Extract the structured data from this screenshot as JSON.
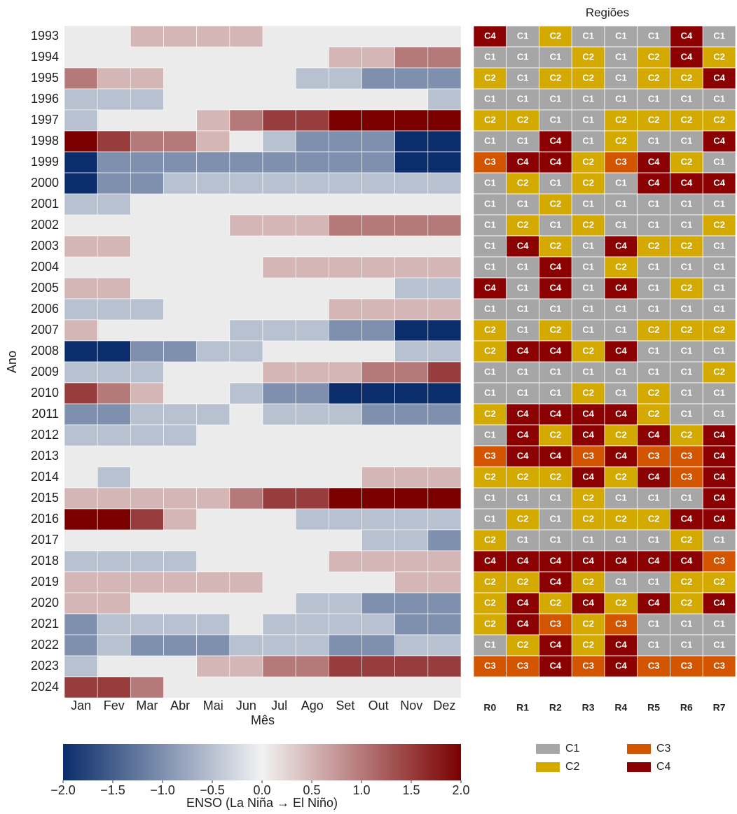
{
  "chart_data": [
    {
      "type": "heatmap",
      "x_label": "Mês",
      "y_label": "Ano",
      "categories": [
        "Jan",
        "Fev",
        "Mar",
        "Abr",
        "Mai",
        "Jun",
        "Jul",
        "Ago",
        "Set",
        "Out",
        "Nov",
        "Dez"
      ],
      "rows": [
        "1993",
        "1994",
        "1995",
        "1996",
        "1997",
        "1998",
        "1999",
        "2000",
        "2001",
        "2002",
        "2003",
        "2004",
        "2005",
        "2006",
        "2007",
        "2008",
        "2009",
        "2010",
        "2011",
        "2012",
        "2013",
        "2014",
        "2015",
        "2016",
        "2017",
        "2018",
        "2019",
        "2020",
        "2021",
        "2022",
        "2023",
        "2024"
      ],
      "values": [
        [
          null,
          null,
          0.5,
          0.5,
          0.5,
          0.5,
          null,
          null,
          null,
          null,
          null,
          null
        ],
        [
          null,
          null,
          null,
          null,
          null,
          null,
          null,
          null,
          0.5,
          0.5,
          1.0,
          1.0
        ],
        [
          1.0,
          0.5,
          0.5,
          null,
          null,
          null,
          null,
          -0.5,
          -0.5,
          -1.0,
          -1.0,
          -1.0
        ],
        [
          -0.5,
          -0.5,
          -0.5,
          null,
          null,
          null,
          null,
          null,
          null,
          null,
          null,
          -0.5
        ],
        [
          -0.5,
          null,
          null,
          null,
          0.5,
          1.0,
          1.5,
          1.5,
          2,
          2,
          2,
          2
        ],
        [
          2,
          1.5,
          1.0,
          1.0,
          0.5,
          null,
          -0.5,
          -1.0,
          -1.0,
          -1.0,
          -2,
          -2
        ],
        [
          -2,
          -1,
          -1,
          -1,
          -1,
          -1,
          -1,
          -1,
          -1,
          -1,
          -2,
          -2
        ],
        [
          -2,
          -1,
          -1,
          -0.5,
          -0.5,
          -0.5,
          -0.5,
          -0.5,
          -0.5,
          -0.5,
          -0.5,
          -0.5
        ],
        [
          -0.5,
          -0.5,
          null,
          null,
          null,
          null,
          null,
          null,
          null,
          null,
          null,
          null
        ],
        [
          null,
          null,
          null,
          null,
          null,
          0.5,
          0.5,
          0.5,
          1.0,
          1.0,
          1.0,
          1.0
        ],
        [
          0.5,
          0.5,
          null,
          null,
          null,
          null,
          null,
          null,
          null,
          null,
          null,
          null
        ],
        [
          null,
          null,
          null,
          null,
          null,
          null,
          0.5,
          0.5,
          0.5,
          0.5,
          0.5,
          0.5
        ],
        [
          0.5,
          0.5,
          null,
          null,
          null,
          null,
          null,
          null,
          null,
          null,
          -0.5,
          -0.5
        ],
        [
          -0.5,
          -0.5,
          -0.5,
          null,
          null,
          null,
          null,
          null,
          0.5,
          0.5,
          0.5,
          0.5
        ],
        [
          0.5,
          null,
          null,
          null,
          null,
          -0.5,
          -0.5,
          -0.5,
          -1,
          -1,
          -2,
          -2
        ],
        [
          -2,
          -2,
          -1,
          -1,
          -0.5,
          -0.5,
          null,
          null,
          null,
          null,
          -0.5,
          -0.5
        ],
        [
          -0.5,
          -0.5,
          -0.5,
          null,
          null,
          null,
          0.5,
          0.5,
          0.5,
          1.0,
          1.0,
          1.5
        ],
        [
          1.5,
          1.0,
          0.5,
          null,
          null,
          -0.5,
          -1,
          -1,
          -2,
          -2,
          -2,
          -2
        ],
        [
          -1,
          -1,
          -0.5,
          -0.5,
          -0.5,
          null,
          -0.5,
          -0.5,
          -0.5,
          -1,
          -1,
          -1
        ],
        [
          -0.5,
          -0.5,
          -0.5,
          -0.5,
          null,
          null,
          null,
          null,
          null,
          null,
          null,
          null
        ],
        [
          null,
          null,
          null,
          null,
          null,
          null,
          null,
          null,
          null,
          null,
          null,
          null
        ],
        [
          null,
          -0.5,
          null,
          null,
          null,
          null,
          null,
          null,
          null,
          0.5,
          0.5,
          0.5
        ],
        [
          0.5,
          0.5,
          0.5,
          0.5,
          0.5,
          1.0,
          1.5,
          1.5,
          2,
          2,
          2,
          2
        ],
        [
          2,
          2,
          1.5,
          0.5,
          null,
          null,
          null,
          -0.5,
          -0.5,
          -0.5,
          -0.5,
          -0.5
        ],
        [
          null,
          null,
          null,
          null,
          null,
          null,
          null,
          null,
          null,
          -0.5,
          -0.5,
          -1
        ],
        [
          -0.5,
          -0.5,
          -0.5,
          -0.5,
          null,
          null,
          null,
          null,
          0.5,
          0.5,
          0.5,
          0.5
        ],
        [
          0.5,
          0.5,
          0.5,
          0.5,
          0.5,
          0.5,
          null,
          null,
          null,
          null,
          0.5,
          0.5
        ],
        [
          0.5,
          0.5,
          null,
          null,
          null,
          null,
          null,
          -0.5,
          -0.5,
          -1,
          -1,
          -1
        ],
        [
          -1,
          -0.5,
          -0.5,
          -0.5,
          -0.5,
          null,
          -0.5,
          -0.5,
          -0.5,
          -0.5,
          -1,
          -1
        ],
        [
          -1,
          -0.5,
          -1,
          -1,
          -1,
          -0.5,
          -0.5,
          -0.5,
          -1,
          -1,
          -0.5,
          -0.5
        ],
        [
          -0.5,
          null,
          null,
          null,
          0.5,
          0.5,
          1.0,
          1.0,
          1.5,
          1.5,
          1.5,
          1.5
        ],
        [
          1.5,
          1.5,
          1.0,
          null,
          null,
          null,
          null,
          null,
          null,
          null,
          null,
          null
        ]
      ],
      "colorscale": [
        [
          -2,
          "#0b2d6b"
        ],
        [
          0,
          "#f2f2f2"
        ],
        [
          2,
          "#7a0000"
        ]
      ],
      "clim": [
        -2,
        2
      ],
      "colorbar": {
        "title": "ENSO (La Niña → El Niño)",
        "ticks": [
          {
            "value": -2,
            "label": "−2.0"
          },
          {
            "value": -1.5,
            "label": "−1.5"
          },
          {
            "value": -1,
            "label": "−1.0"
          },
          {
            "value": -0.5,
            "label": "−0.5"
          },
          {
            "value": 0,
            "label": "0.0"
          },
          0.5,
          {
            "value": 1,
            "label": "1.0"
          },
          1.5,
          {
            "value": 2,
            "label": "2.0"
          }
        ]
      }
    },
    {
      "type": "tile",
      "title": "Regiões",
      "categories": [
        "R0",
        "R1",
        "R2",
        "R3",
        "R4",
        "R5",
        "R6",
        "R7"
      ],
      "clusters": [
        {
          "name": "C1",
          "color": "#a6a6a6"
        },
        {
          "name": "C2",
          "color": "#d4aa00"
        },
        {
          "name": "C3",
          "color": "#d45500"
        },
        {
          "name": "C4",
          "color": "#8b0000"
        }
      ],
      "cells": [
        [
          "C4",
          "C1",
          "C2",
          "C1",
          "C1",
          "C1",
          "C4",
          "C1"
        ],
        [
          "C1",
          "C1",
          "C1",
          "C2",
          "C1",
          "C2",
          "C4",
          "C2"
        ],
        [
          "C2",
          "C1",
          "C2",
          "C2",
          "C1",
          "C2",
          "C2",
          "C4"
        ],
        [
          "C1",
          "C1",
          "C1",
          "C1",
          "C1",
          "C1",
          "C1",
          "C1"
        ],
        [
          "C2",
          "C2",
          "C1",
          "C1",
          "C2",
          "C2",
          "C2",
          "C2"
        ],
        [
          "C1",
          "C1",
          "C4",
          "C1",
          "C2",
          "C1",
          "C1",
          "C4"
        ],
        [
          "C3",
          "C4",
          "C4",
          "C2",
          "C3",
          "C4",
          "C2",
          "C1"
        ],
        [
          "C1",
          "C2",
          "C1",
          "C2",
          "C1",
          "C4",
          "C4",
          "C4"
        ],
        [
          "C1",
          "C1",
          "C2",
          "C1",
          "C1",
          "C1",
          "C1",
          "C1"
        ],
        [
          "C1",
          "C2",
          "C1",
          "C2",
          "C1",
          "C1",
          "C1",
          "C2"
        ],
        [
          "C1",
          "C4",
          "C2",
          "C1",
          "C4",
          "C2",
          "C2",
          "C1"
        ],
        [
          "C1",
          "C1",
          "C4",
          "C1",
          "C2",
          "C1",
          "C1",
          "C1"
        ],
        [
          "C4",
          "C1",
          "C4",
          "C1",
          "C4",
          "C1",
          "C2",
          "C1"
        ],
        [
          "C1",
          "C1",
          "C1",
          "C1",
          "C1",
          "C1",
          "C1",
          "C1"
        ],
        [
          "C2",
          "C1",
          "C2",
          "C1",
          "C1",
          "C2",
          "C2",
          "C2"
        ],
        [
          "C2",
          "C4",
          "C4",
          "C2",
          "C4",
          "C1",
          "C1",
          "C1"
        ],
        [
          "C1",
          "C1",
          "C1",
          "C1",
          "C1",
          "C1",
          "C1",
          "C2"
        ],
        [
          "C1",
          "C1",
          "C1",
          "C2",
          "C1",
          "C2",
          "C1",
          "C1"
        ],
        [
          "C2",
          "C4",
          "C4",
          "C4",
          "C4",
          "C2",
          "C1",
          "C1"
        ],
        [
          "C1",
          "C4",
          "C2",
          "C4",
          "C2",
          "C4",
          "C2",
          "C4"
        ],
        [
          "C3",
          "C4",
          "C4",
          "C3",
          "C4",
          "C3",
          "C3",
          "C4"
        ],
        [
          "C2",
          "C2",
          "C2",
          "C4",
          "C2",
          "C4",
          "C3",
          "C4"
        ],
        [
          "C1",
          "C1",
          "C1",
          "C2",
          "C1",
          "C1",
          "C1",
          "C4"
        ],
        [
          "C1",
          "C2",
          "C1",
          "C2",
          "C2",
          "C2",
          "C4",
          "C4"
        ],
        [
          "C2",
          "C1",
          "C1",
          "C1",
          "C1",
          "C1",
          "C2",
          "C1"
        ],
        [
          "C4",
          "C4",
          "C4",
          "C4",
          "C4",
          "C4",
          "C4",
          "C3"
        ],
        [
          "C2",
          "C2",
          "C4",
          "C2",
          "C1",
          "C1",
          "C2",
          "C2"
        ],
        [
          "C2",
          "C4",
          "C2",
          "C4",
          "C2",
          "C4",
          "C2",
          "C4"
        ],
        [
          "C2",
          "C4",
          "C3",
          "C2",
          "C3",
          "C1",
          "C1",
          "C1"
        ],
        [
          "C1",
          "C2",
          "C4",
          "C2",
          "C4",
          "C1",
          "C1",
          "C1"
        ],
        [
          "C3",
          "C3",
          "C4",
          "C3",
          "C4",
          "C3",
          "C3",
          "C3"
        ]
      ]
    }
  ]
}
